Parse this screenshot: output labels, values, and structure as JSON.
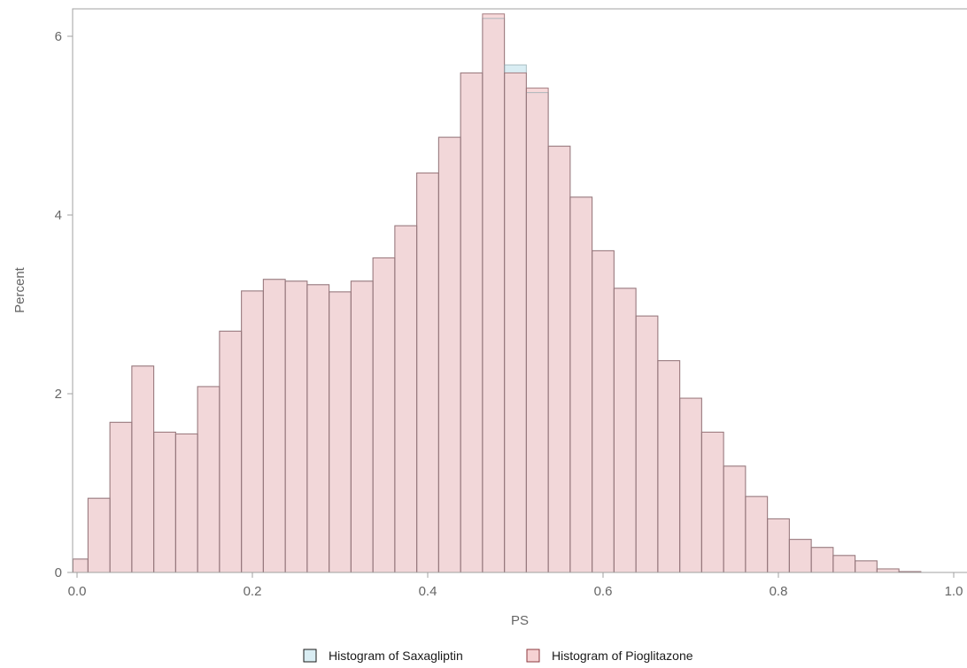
{
  "chart_data": {
    "type": "bar",
    "subtype": "overlaid-histogram",
    "xlabel": "PS",
    "ylabel": "Percent",
    "xlim": [
      0.0,
      1.0
    ],
    "ylim": [
      0,
      6.3
    ],
    "xticks": [
      0.0,
      0.2,
      0.4,
      0.6,
      0.8,
      1.0
    ],
    "xtick_labels": [
      "0.0",
      "0.2",
      "0.4",
      "0.6",
      "0.8",
      "1.0"
    ],
    "yticks": [
      0,
      2,
      4,
      6
    ],
    "ytick_labels": [
      "0",
      "2",
      "4",
      "6"
    ],
    "bin_width": 0.025,
    "bin_starts": [
      -0.0125,
      0.0125,
      0.0375,
      0.0625,
      0.0875,
      0.1125,
      0.1375,
      0.1625,
      0.1875,
      0.2125,
      0.2375,
      0.2625,
      0.2875,
      0.3125,
      0.3375,
      0.3625,
      0.3875,
      0.4125,
      0.4375,
      0.4625,
      0.4875,
      0.5125,
      0.5375,
      0.5625,
      0.5875,
      0.6125,
      0.6375,
      0.6625,
      0.6875,
      0.7125,
      0.7375,
      0.7625,
      0.7875,
      0.8125,
      0.8375,
      0.8625,
      0.8875,
      0.9125,
      0.9375
    ],
    "grid": false,
    "legend_position": "bottom-center",
    "series": [
      {
        "name": "Histogram of Saxagliptin",
        "color": "#d9edf3",
        "values": [
          0.15,
          0.83,
          1.68,
          2.31,
          1.57,
          1.55,
          2.08,
          2.7,
          3.15,
          3.28,
          3.26,
          3.22,
          3.14,
          3.26,
          3.52,
          3.88,
          4.47,
          4.87,
          5.59,
          6.2,
          5.68,
          5.37,
          4.77,
          4.2,
          3.6,
          3.18,
          2.87,
          2.37,
          1.95,
          1.57,
          1.19,
          0.85,
          0.6,
          0.37,
          0.28,
          0.19,
          0.13,
          0.04,
          0.01
        ]
      },
      {
        "name": "Histogram of Pioglitazone",
        "color": "#f6d2d3",
        "values": [
          0.15,
          0.83,
          1.68,
          2.31,
          1.57,
          1.55,
          2.08,
          2.7,
          3.15,
          3.28,
          3.26,
          3.22,
          3.14,
          3.26,
          3.52,
          3.88,
          4.47,
          4.87,
          5.59,
          6.25,
          5.59,
          5.42,
          4.77,
          4.2,
          3.6,
          3.18,
          2.87,
          2.37,
          1.95,
          1.57,
          1.19,
          0.85,
          0.6,
          0.37,
          0.28,
          0.19,
          0.13,
          0.04,
          0.01
        ]
      }
    ]
  }
}
